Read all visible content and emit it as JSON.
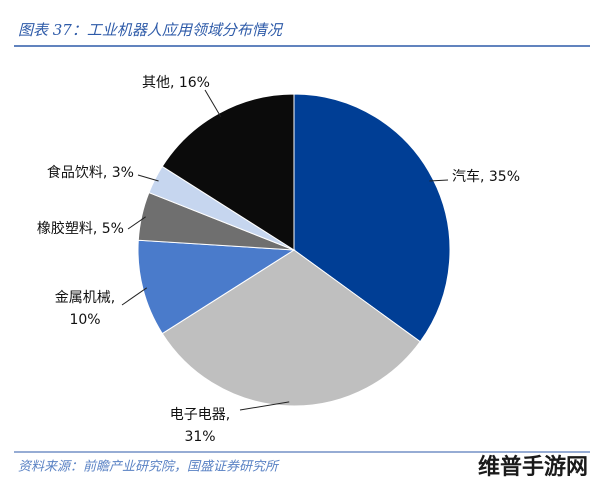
{
  "chart_data": {
    "type": "pie",
    "title": "图表 37：工业机器人应用领域分布情况",
    "values": [
      35,
      31,
      10,
      5,
      3,
      16
    ],
    "labels": [
      [
        "汽车, 35%"
      ],
      [
        "电子电器,",
        "31%"
      ],
      [
        "金属机械,",
        "10%"
      ],
      [
        "橡胶塑料, 5%"
      ],
      [
        "食品饮料, 3%"
      ],
      [
        "其他, 16%"
      ]
    ],
    "colors": [
      "#003e95",
      "#bfbfbf",
      "#4a7bcb",
      "#6f6f6f",
      "#c6d6ef",
      "#0b0b0b"
    ],
    "source": "资料来源：前瞻产业研究院，国盛证券研究所"
  },
  "watermark": "维普手游网"
}
